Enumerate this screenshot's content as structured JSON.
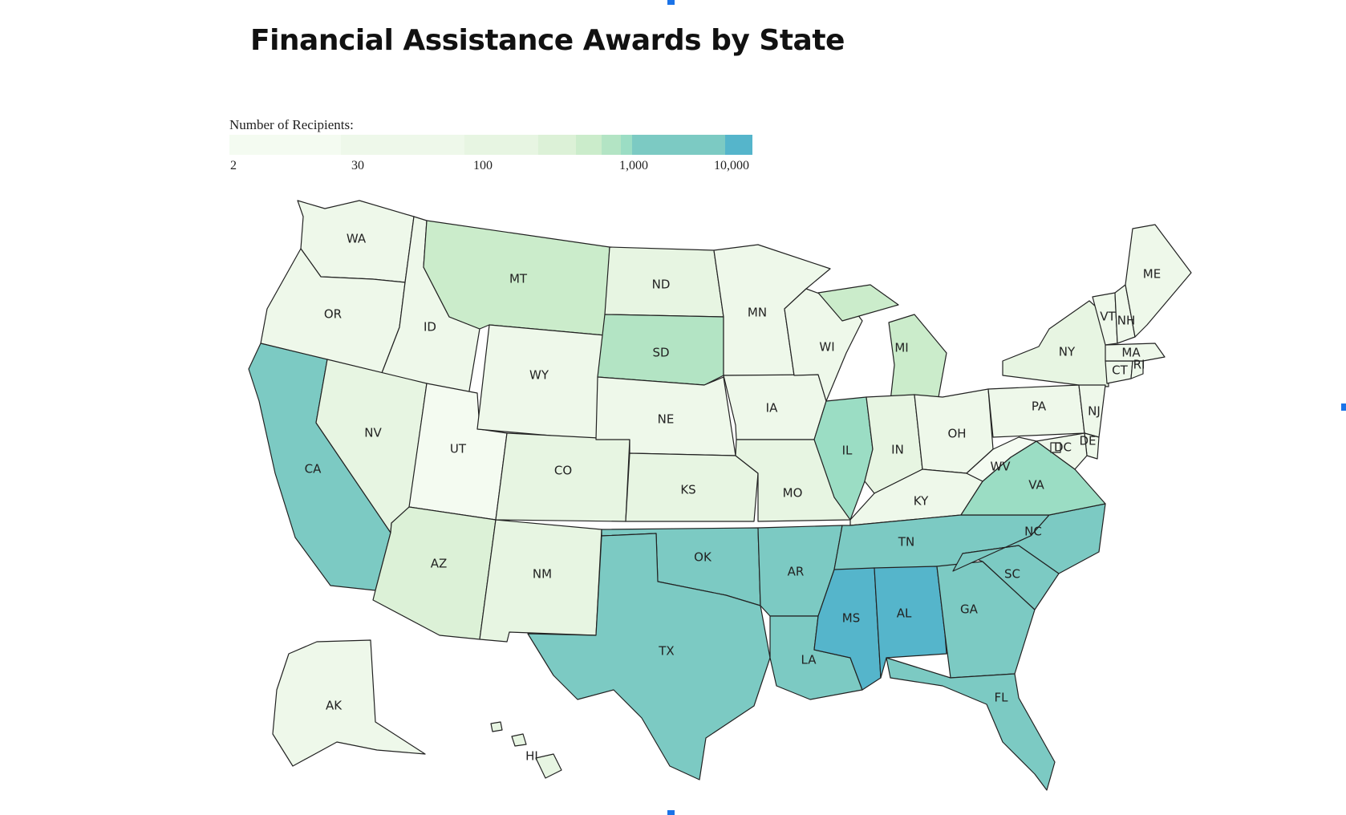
{
  "title": "Financial Assistance Awards by State",
  "legend": {
    "title": "Number of Recipients:",
    "ticks": [
      {
        "label": "2",
        "value": 2
      },
      {
        "label": "30",
        "value": 30
      },
      {
        "label": "100",
        "value": 100
      },
      {
        "label": "1,000",
        "value": 1000
      },
      {
        "label": "10,000",
        "value": 10000
      }
    ],
    "colors": [
      "#f4fbf1",
      "#eef8ea",
      "#e7f5e2",
      "#dcf1d7",
      "#cbeccb",
      "#b3e4c4",
      "#9bddc4",
      "#7ccac3",
      "#55b5cb"
    ]
  },
  "chart_data": {
    "type": "choropleth",
    "title": "Financial Assistance Awards by State",
    "legend_title": "Number of Recipients:",
    "scale": "log",
    "range": [
      2,
      10000
    ],
    "states": [
      {
        "code": "WA",
        "level": 1
      },
      {
        "code": "OR",
        "level": 1
      },
      {
        "code": "CA",
        "level": 7
      },
      {
        "code": "ID",
        "level": 1
      },
      {
        "code": "NV",
        "level": 2
      },
      {
        "code": "UT",
        "level": 0
      },
      {
        "code": "AZ",
        "level": 3
      },
      {
        "code": "MT",
        "level": 4
      },
      {
        "code": "WY",
        "level": 1
      },
      {
        "code": "CO",
        "level": 2
      },
      {
        "code": "NM",
        "level": 2
      },
      {
        "code": "ND",
        "level": 2
      },
      {
        "code": "SD",
        "level": 5
      },
      {
        "code": "NE",
        "level": 1
      },
      {
        "code": "KS",
        "level": 2
      },
      {
        "code": "OK",
        "level": 7
      },
      {
        "code": "TX",
        "level": 7
      },
      {
        "code": "MN",
        "level": 1
      },
      {
        "code": "IA",
        "level": 1
      },
      {
        "code": "MO",
        "level": 2
      },
      {
        "code": "AR",
        "level": 7
      },
      {
        "code": "LA",
        "level": 7
      },
      {
        "code": "WI",
        "level": 1
      },
      {
        "code": "IL",
        "level": 6
      },
      {
        "code": "MI",
        "level": 4
      },
      {
        "code": "IN",
        "level": 2
      },
      {
        "code": "OH",
        "level": 1
      },
      {
        "code": "KY",
        "level": 1
      },
      {
        "code": "TN",
        "level": 7
      },
      {
        "code": "MS",
        "level": 8
      },
      {
        "code": "AL",
        "level": 8
      },
      {
        "code": "GA",
        "level": 7
      },
      {
        "code": "FL",
        "level": 7
      },
      {
        "code": "SC",
        "level": 7
      },
      {
        "code": "NC",
        "level": 7
      },
      {
        "code": "VA",
        "level": 6
      },
      {
        "code": "WV",
        "level": 0
      },
      {
        "code": "PA",
        "level": 1
      },
      {
        "code": "NY",
        "level": 2
      },
      {
        "code": "NJ",
        "level": 1
      },
      {
        "code": "DE",
        "level": 1
      },
      {
        "code": "MD",
        "level": 1
      },
      {
        "code": "DC",
        "level": 1
      },
      {
        "code": "CT",
        "level": 1
      },
      {
        "code": "RI",
        "level": 1
      },
      {
        "code": "MA",
        "level": 1
      },
      {
        "code": "VT",
        "level": 1
      },
      {
        "code": "NH",
        "level": 1
      },
      {
        "code": "ME",
        "level": 1
      },
      {
        "code": "AK",
        "level": 1
      },
      {
        "code": "HI",
        "level": 2
      }
    ]
  }
}
